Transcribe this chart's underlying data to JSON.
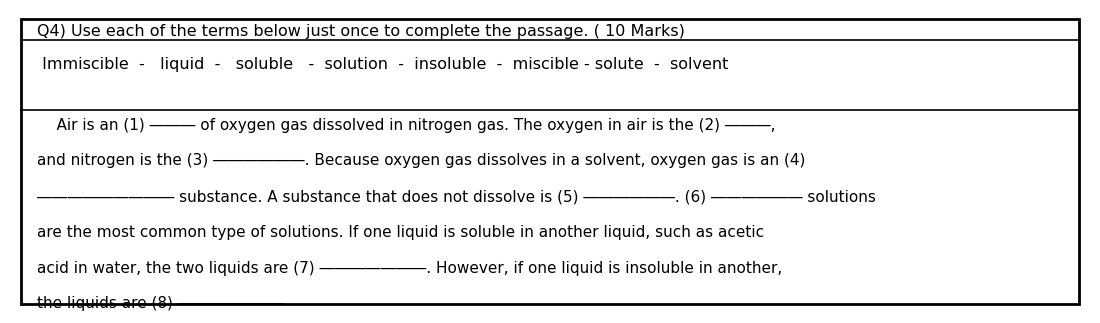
{
  "bg_color": "#ffffff",
  "border_color": "#000000",
  "title_line": "Q4) Use each of the terms below just once to complete the passage. ( 10 Marks)",
  "terms_line": " Immiscible  -   liquid  -   soluble   -  solution  -  insoluble  -  miscible - solute  -  solvent",
  "body_lines": [
    "    Air is an (1) ――― of oxygen gas dissolved in nitrogen gas. The oxygen in air is the (2) ―――,",
    "and nitrogen is the (3) ――――――. Because oxygen gas dissolves in a solvent, oxygen gas is an (4)",
    "――――――――― substance. A substance that does not dissolve is (5) ――――――. (6) ―――――― solutions",
    "are the most common type of solutions. If one liquid is soluble in another liquid, such as acetic",
    "acid in water, the two liquids are (7) ―――――――. However, if one liquid is insoluble in another,",
    "the liquids are (8) ―――――――"
  ],
  "title_fontsize": 11.5,
  "terms_fontsize": 11.5,
  "body_fontsize": 11.0,
  "text_color": "#000000",
  "border_lw": 2.0,
  "inner_line_lw": 1.2
}
